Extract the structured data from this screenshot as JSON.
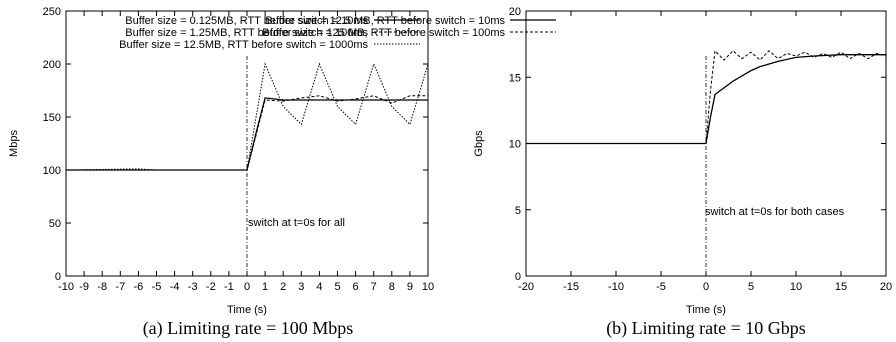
{
  "chart_data": [
    {
      "type": "line",
      "caption": "(a) Limiting rate = 100 Mbps",
      "xlabel": "Time (s)",
      "ylabel": "Mbps",
      "xlim": [
        -10,
        10
      ],
      "ylim": [
        0,
        250
      ],
      "xticks": [
        -10,
        -9,
        -8,
        -7,
        -6,
        -5,
        -4,
        -3,
        -2,
        -1,
        0,
        1,
        2,
        3,
        4,
        5,
        6,
        7,
        8,
        9,
        10
      ],
      "yticks": [
        0,
        50,
        100,
        150,
        200,
        250
      ],
      "grid": false,
      "legend_position": "top-right",
      "annotation": {
        "text": "switch at t=0s for all",
        "x": 0
      },
      "series": [
        {
          "name": "Buffer size = 0.125MB, RTT before switch = 10ms",
          "style": "solid",
          "x": [
            -10,
            -5,
            -1,
            0,
            0.5,
            1,
            2,
            3,
            4,
            5,
            6,
            7,
            8,
            9,
            10
          ],
          "y": [
            100,
            100,
            100,
            100,
            135,
            168,
            166,
            166,
            166,
            166,
            166,
            166,
            166,
            166,
            166
          ]
        },
        {
          "name": "Buffer size = 1.25MB, RTT before switch = 100ms",
          "style": "dashed",
          "x": [
            -10,
            -5,
            -1,
            0,
            0.5,
            1,
            2,
            3,
            4,
            5,
            6,
            7,
            8,
            9,
            10
          ],
          "y": [
            100,
            100,
            100,
            100,
            133,
            166,
            165,
            168,
            170,
            165,
            167,
            170,
            163,
            170,
            170
          ]
        },
        {
          "name": "Buffer size = 12.5MB, RTT before switch = 1000ms",
          "style": "dotted",
          "x": [
            -10,
            -6,
            -5,
            -1,
            0,
            0.5,
            1,
            2,
            3,
            4,
            5,
            6,
            7,
            8,
            9,
            10
          ],
          "y": [
            100,
            101,
            100,
            100,
            100,
            150,
            200,
            160,
            143,
            200,
            160,
            143,
            200,
            160,
            143,
            200
          ]
        }
      ]
    },
    {
      "type": "line",
      "caption": "(b) Limiting rate = 10 Gbps",
      "xlabel": "Time (s)",
      "ylabel": "Gbps",
      "xlim": [
        -20,
        20
      ],
      "ylim": [
        0,
        20
      ],
      "xticks": [
        -20,
        -15,
        -10,
        -5,
        0,
        5,
        10,
        15,
        20
      ],
      "yticks": [
        0,
        5,
        10,
        15,
        20
      ],
      "grid": false,
      "legend_position": "top-right",
      "annotation": {
        "text": "switch at t=0s for both cases",
        "x": 0
      },
      "series": [
        {
          "name": "Buffer size = 12.5 MB, RTT before switch = 10ms",
          "style": "solid",
          "x": [
            -20,
            0,
            0.5,
            1,
            2,
            3,
            4,
            5,
            6,
            8,
            10,
            12,
            15,
            18,
            20
          ],
          "y": [
            10,
            10,
            12,
            13.7,
            14.2,
            14.7,
            15.1,
            15.5,
            15.8,
            16.2,
            16.5,
            16.6,
            16.7,
            16.7,
            16.7
          ]
        },
        {
          "name": "Buffer size = 125 MB, RTT before switch = 100ms",
          "style": "dashed",
          "x": [
            -20,
            0,
            0.5,
            1,
            2,
            3,
            4,
            5,
            6,
            7,
            8,
            9,
            10,
            11,
            12,
            13,
            14,
            15,
            16,
            17,
            18,
            19,
            20
          ],
          "y": [
            10,
            10,
            14,
            17,
            16.3,
            17,
            16.4,
            16.9,
            16.3,
            17,
            16.4,
            16.8,
            16.6,
            16.9,
            16.5,
            16.8,
            16.5,
            16.9,
            16.4,
            16.8,
            16.4,
            16.8,
            16.6
          ]
        }
      ]
    }
  ]
}
